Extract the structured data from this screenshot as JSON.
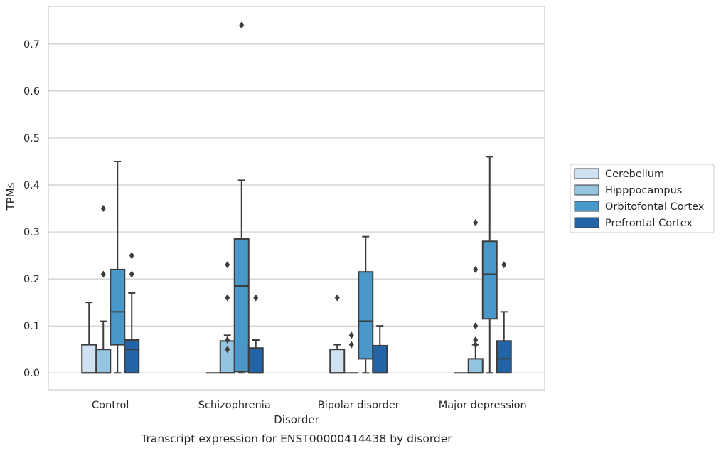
{
  "chart_data": {
    "type": "boxplot",
    "title": "Transcript expression for ENST00000414438 by disorder",
    "xlabel": "Disorder",
    "ylabel": "TPMs",
    "ylim": [
      -0.036,
      0.78
    ],
    "yticks": [
      "0.0",
      "0.1",
      "0.2",
      "0.3",
      "0.4",
      "0.5",
      "0.6",
      "0.7"
    ],
    "grid": true,
    "legend_position": "right",
    "categories": [
      "Control",
      "Schizophrenia",
      "Bipolar disorder",
      "Major depression"
    ],
    "series": [
      {
        "name": "Cerebellum",
        "color": "#d0e1f2",
        "boxes": [
          {
            "min": 0.0,
            "q1": 0.0,
            "median": 0.0,
            "q3": 0.06,
            "max": 0.15,
            "outliers": []
          },
          {
            "min": 0.0,
            "q1": 0.0,
            "median": 0.0,
            "q3": 0.0,
            "max": 0.0,
            "outliers": []
          },
          {
            "min": 0.0,
            "q1": 0.0,
            "median": 0.0,
            "q3": 0.05,
            "max": 0.06,
            "outliers": [
              0.16
            ]
          },
          {
            "min": 0.0,
            "q1": 0.0,
            "median": 0.0,
            "q3": 0.0,
            "max": 0.0,
            "outliers": []
          }
        ]
      },
      {
        "name": "Hipppocampus",
        "color": "#94c4df",
        "boxes": [
          {
            "min": 0.0,
            "q1": 0.0,
            "median": 0.0,
            "q3": 0.05,
            "max": 0.11,
            "outliers": [
              0.21,
              0.35
            ]
          },
          {
            "min": 0.0,
            "q1": 0.0,
            "median": 0.0,
            "q3": 0.068,
            "max": 0.08,
            "outliers": [
              0.05,
              0.07,
              0.16,
              0.23
            ]
          },
          {
            "min": 0.0,
            "q1": 0.0,
            "median": 0.0,
            "q3": 0.0,
            "max": 0.0,
            "outliers": [
              0.06,
              0.08
            ]
          },
          {
            "min": 0.0,
            "q1": 0.0,
            "median": 0.0,
            "q3": 0.03,
            "max": 0.06,
            "outliers": [
              0.06,
              0.07,
              0.1,
              0.22,
              0.32
            ]
          }
        ]
      },
      {
        "name": "Orbitofontal Cortex",
        "color": "#4a98c9",
        "boxes": [
          {
            "min": 0.0,
            "q1": 0.06,
            "median": 0.13,
            "q3": 0.22,
            "max": 0.45,
            "outliers": []
          },
          {
            "min": 0.0,
            "q1": 0.003,
            "median": 0.185,
            "q3": 0.285,
            "max": 0.41,
            "outliers": [
              0.74
            ]
          },
          {
            "min": 0.0,
            "q1": 0.03,
            "median": 0.11,
            "q3": 0.215,
            "max": 0.29,
            "outliers": []
          },
          {
            "min": 0.0,
            "q1": 0.115,
            "median": 0.21,
            "q3": 0.28,
            "max": 0.46,
            "outliers": []
          }
        ]
      },
      {
        "name": "Prefrontal Cortex",
        "color": "#2264a6",
        "boxes": [
          {
            "min": 0.0,
            "q1": 0.0,
            "median": 0.05,
            "q3": 0.07,
            "max": 0.17,
            "outliers": [
              0.21,
              0.25
            ]
          },
          {
            "min": 0.0,
            "q1": 0.0,
            "median": 0.0,
            "q3": 0.053,
            "max": 0.07,
            "outliers": [
              0.16
            ]
          },
          {
            "min": 0.0,
            "q1": 0.0,
            "median": 0.0,
            "q3": 0.058,
            "max": 0.1,
            "outliers": []
          },
          {
            "min": 0.0,
            "q1": 0.0,
            "median": 0.03,
            "q3": 0.068,
            "max": 0.13,
            "outliers": [
              0.23
            ]
          }
        ]
      }
    ]
  }
}
